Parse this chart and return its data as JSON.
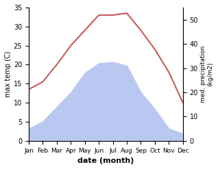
{
  "months": [
    "Jan",
    "Feb",
    "Mar",
    "Apr",
    "May",
    "Jun",
    "Jul",
    "Aug",
    "Sep",
    "Oct",
    "Nov",
    "Dec"
  ],
  "month_positions": [
    1,
    2,
    3,
    4,
    5,
    6,
    7,
    8,
    9,
    10,
    11,
    12
  ],
  "temp_values": [
    13.5,
    15.5,
    20.0,
    25.0,
    29.0,
    33.0,
    33.0,
    33.5,
    29.0,
    24.0,
    18.0,
    10.0
  ],
  "precip_values": [
    5.0,
    8.0,
    14.0,
    20.0,
    28.0,
    32.0,
    32.5,
    31.0,
    20.0,
    13.0,
    5.0,
    3.0
  ],
  "temp_color": "#c85a5a",
  "precip_fill_color": "#b8c8f0",
  "temp_ylim": [
    0,
    35
  ],
  "precip_ylim": [
    0,
    55
  ],
  "temp_yticks": [
    0,
    5,
    10,
    15,
    20,
    25,
    30,
    35
  ],
  "precip_yticks": [
    0,
    10,
    20,
    30,
    40,
    50
  ],
  "xlabel": "date (month)",
  "ylabel_left": "max temp (C)",
  "ylabel_right": "med. precipitation\n(kg/m2)",
  "background_color": "#ffffff"
}
